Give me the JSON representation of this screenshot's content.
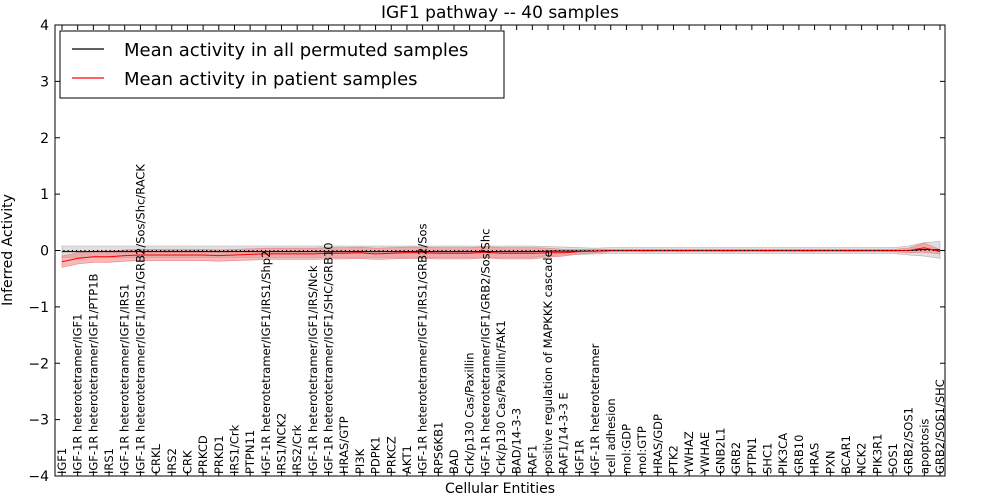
{
  "chart_data": {
    "type": "line",
    "title": "IGF1 pathway -- 40 samples",
    "xlabel": "Cellular Entities",
    "ylabel": "Inferred Activity",
    "ylim": [
      -4,
      4
    ],
    "yticks": [
      "4",
      "3",
      "2",
      "1",
      "0",
      "−1",
      "−2",
      "−3",
      "−4"
    ],
    "ytick_values": [
      4,
      3,
      2,
      1,
      0,
      -1,
      -2,
      -3,
      -4
    ],
    "legend_position": "top-left",
    "categories": [
      "IGF1",
      "IGF-1R heterotetramer/IGF1",
      "IGF-1R heterotetramer/IGF1/PTP1B",
      "IRS1",
      "IGF-1R heterotetramer/IGF1/IRS1",
      "IGF-1R heterotetramer/IGF1/IRS1/GRB2/Sos/Shc/RACK",
      "CRKL",
      "IRS2",
      "CRK",
      "PRKCD",
      "PRKD1",
      "IRS1/Crk",
      "PTPN11",
      "IGF-1R heterotetramer/IGF1/IRS1/Shp2",
      "IRS1/NCK2",
      "IRS2/Crk",
      "IGF-1R heterotetramer/IGF1/IRS/Nck",
      "IGF-1R heterotetramer/IGF1/SHC/GRB10",
      "HRAS/GTP",
      "PI3K",
      "PDPK1",
      "PRKCZ",
      "AKT1",
      "IGF-1R heterotetramer/IGF1/IRS1/GRB2/Sos",
      "RPS6KB1",
      "BAD",
      "Crk/p130 Cas/Paxillin",
      "IGF-1R heterotetramer/IGF1/GRB2/Sos/Shc",
      "Crk/p130 Cas/Paxillin/FAK1",
      "BAD/14-3-3",
      "RAF1",
      "positive regulation of MAPKKK cascade",
      "RAF1/14-3-3 E",
      "IGF1R",
      "IGF-1R heterotetramer",
      "cell adhesion",
      "mol:GDP",
      "mol:GTP",
      "HRAS/GDP",
      "PTK2",
      "YWHAZ",
      "YWHAE",
      "GNB2L1",
      "GRB2",
      "PTPN1",
      "SHC1",
      "PIK3CA",
      "GRB10",
      "HRAS",
      "PXN",
      "BCAR1",
      "NCK2",
      "PIK3R1",
      "SOS1",
      "GRB2/SOS1",
      "apoptosis",
      "GRB2/SOS1/SHC"
    ],
    "series": [
      {
        "name": "Mean activity in all permuted samples",
        "color": "#000000",
        "band_color": "#b0b0b0",
        "values": [
          -0.02,
          -0.02,
          -0.02,
          -0.02,
          -0.02,
          -0.02,
          -0.02,
          -0.02,
          -0.02,
          -0.02,
          -0.02,
          -0.02,
          -0.02,
          -0.02,
          -0.02,
          -0.02,
          -0.02,
          -0.02,
          -0.02,
          -0.02,
          -0.02,
          -0.02,
          -0.02,
          -0.02,
          -0.02,
          -0.02,
          -0.02,
          -0.02,
          -0.02,
          -0.02,
          -0.02,
          -0.01,
          -0.01,
          -0.01,
          -0.01,
          0,
          0,
          0,
          0,
          0,
          0,
          0,
          0,
          0,
          0,
          0,
          0,
          0,
          0,
          0,
          0,
          0,
          0,
          0,
          0,
          0.02,
          0.01
        ],
        "band": [
          0.1,
          0.1,
          0.1,
          0.1,
          0.1,
          0.1,
          0.1,
          0.1,
          0.1,
          0.1,
          0.1,
          0.1,
          0.1,
          0.1,
          0.1,
          0.1,
          0.1,
          0.1,
          0.1,
          0.1,
          0.1,
          0.1,
          0.1,
          0.1,
          0.1,
          0.1,
          0.1,
          0.1,
          0.1,
          0.1,
          0.1,
          0.08,
          0.07,
          0.06,
          0.05,
          0.05,
          0.05,
          0.05,
          0.05,
          0.05,
          0.05,
          0.05,
          0.05,
          0.05,
          0.05,
          0.05,
          0.05,
          0.05,
          0.05,
          0.05,
          0.05,
          0.05,
          0.05,
          0.05,
          0.08,
          0.12,
          0.15
        ]
      },
      {
        "name": "Mean activity in patient samples",
        "color": "#ff0000",
        "band_color": "#f08080",
        "values": [
          -0.2,
          -0.14,
          -0.11,
          -0.11,
          -0.09,
          -0.08,
          -0.08,
          -0.08,
          -0.08,
          -0.08,
          -0.09,
          -0.08,
          -0.07,
          -0.06,
          -0.06,
          -0.06,
          -0.06,
          -0.05,
          -0.05,
          -0.04,
          -0.06,
          -0.05,
          -0.04,
          -0.04,
          -0.05,
          -0.05,
          -0.05,
          -0.03,
          -0.05,
          -0.05,
          -0.05,
          -0.04,
          -0.04,
          -0.02,
          -0.01,
          0,
          0,
          0,
          0,
          0,
          0,
          0,
          0,
          0,
          0,
          0,
          0,
          0,
          0,
          0,
          0,
          0,
          0,
          0,
          0,
          0.05,
          -0.02
        ],
        "band": [
          0.1,
          0.1,
          0.1,
          0.1,
          0.1,
          0.1,
          0.1,
          0.1,
          0.1,
          0.1,
          0.1,
          0.1,
          0.1,
          0.1,
          0.1,
          0.1,
          0.1,
          0.1,
          0.1,
          0.1,
          0.1,
          0.1,
          0.1,
          0.1,
          0.1,
          0.1,
          0.1,
          0.1,
          0.1,
          0.1,
          0.1,
          0.08,
          0.06,
          0.04,
          0.03,
          0.02,
          0.02,
          0.02,
          0.02,
          0.02,
          0.02,
          0.02,
          0.02,
          0.02,
          0.02,
          0.02,
          0.02,
          0.02,
          0.02,
          0.02,
          0.02,
          0.02,
          0.02,
          0.02,
          0.04,
          0.08,
          0.04
        ]
      }
    ],
    "reference_line": {
      "y": 0,
      "style": "dotted"
    }
  }
}
